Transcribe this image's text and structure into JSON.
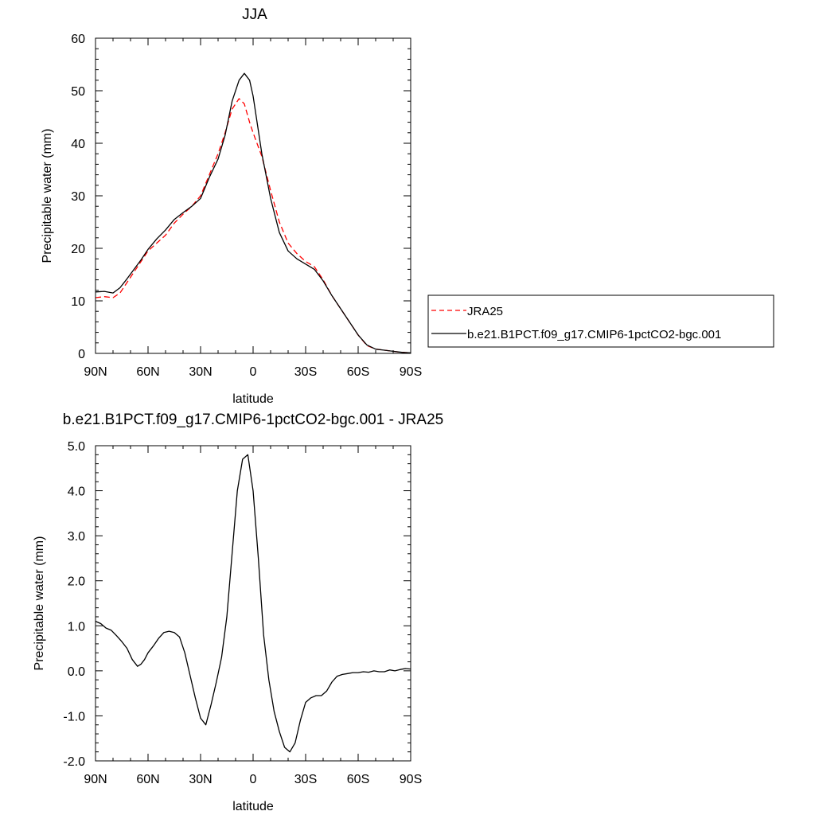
{
  "chart_data": [
    {
      "type": "line",
      "title": "JJA",
      "xlabel": "latitude",
      "ylabel": "Precipitable water (mm)",
      "xlim": [
        90,
        -90
      ],
      "ylim": [
        0,
        60
      ],
      "x_ticks": [
        90,
        60,
        30,
        0,
        -30,
        -60,
        -90
      ],
      "x_tick_labels": [
        "90N",
        "60N",
        "30N",
        "0",
        "30S",
        "60S",
        "90S"
      ],
      "y_ticks": [
        0,
        10,
        20,
        30,
        40,
        50,
        60
      ],
      "y_tick_labels": [
        "0",
        "10",
        "20",
        "30",
        "40",
        "50",
        "60"
      ],
      "grid": false,
      "legend_position": "right",
      "series": [
        {
          "name": "JRA25",
          "color": "#ff0000",
          "dash": "dashed",
          "x": [
            90,
            85,
            80,
            76,
            72,
            68,
            64,
            60,
            55,
            50,
            45,
            40,
            35,
            30,
            25,
            20,
            16,
            12,
            8,
            5,
            2,
            0,
            -5,
            -10,
            -15,
            -20,
            -25,
            -30,
            -35,
            -40,
            -45,
            -50,
            -55,
            -60,
            -65,
            -70,
            -75,
            -80,
            -85,
            -90
          ],
          "values": [
            10.6,
            10.8,
            10.6,
            11.5,
            13.5,
            15.5,
            17.5,
            19.5,
            21.0,
            22.5,
            24.8,
            26.5,
            28.0,
            30.0,
            34.0,
            38.0,
            42.0,
            46.5,
            48.5,
            47.5,
            44.0,
            42.0,
            37.5,
            31.0,
            25.0,
            21.0,
            19.0,
            17.5,
            16.5,
            14.0,
            11.0,
            8.5,
            6.0,
            3.5,
            1.5,
            0.8,
            0.6,
            0.4,
            0.2,
            0.1
          ]
        },
        {
          "name": "b.e21.B1PCT.f09_g17.CMIP6-1pctCO2-bgc.001",
          "color": "#000000",
          "dash": "solid",
          "x": [
            90,
            85,
            80,
            76,
            72,
            68,
            64,
            60,
            55,
            50,
            45,
            40,
            35,
            30,
            25,
            20,
            16,
            12,
            8,
            5,
            2,
            0,
            -5,
            -10,
            -15,
            -20,
            -25,
            -30,
            -35,
            -40,
            -45,
            -50,
            -55,
            -60,
            -65,
            -70,
            -75,
            -80,
            -85,
            -90
          ],
          "values": [
            11.7,
            11.8,
            11.5,
            12.5,
            14.2,
            16.0,
            17.8,
            19.8,
            21.8,
            23.5,
            25.5,
            26.8,
            28.0,
            29.5,
            33.5,
            37.0,
            41.5,
            48.0,
            52.0,
            53.3,
            52.0,
            49.0,
            38.0,
            29.5,
            23.0,
            19.5,
            18.0,
            17.0,
            16.0,
            13.8,
            11.0,
            8.5,
            6.0,
            3.5,
            1.6,
            0.8,
            0.6,
            0.4,
            0.2,
            0.1
          ]
        }
      ]
    },
    {
      "type": "line",
      "title": "b.e21.B1PCT.f09_g17.CMIP6-1pctCO2-bgc.001 - JRA25",
      "xlabel": "latitude",
      "ylabel": "Precipitable water (mm)",
      "xlim": [
        90,
        -90
      ],
      "ylim": [
        -2.0,
        5.0
      ],
      "x_ticks": [
        90,
        60,
        30,
        0,
        -30,
        -60,
        -90
      ],
      "x_tick_labels": [
        "90N",
        "60N",
        "30N",
        "0",
        "30S",
        "60S",
        "90S"
      ],
      "y_ticks": [
        -2.0,
        -1.0,
        0.0,
        1.0,
        2.0,
        3.0,
        4.0,
        5.0
      ],
      "y_tick_labels": [
        "-2.0",
        "-1.0",
        "0.0",
        "1.0",
        "2.0",
        "3.0",
        "4.0",
        "5.0"
      ],
      "grid": false,
      "series": [
        {
          "color": "#000000",
          "dash": "solid",
          "x": [
            90,
            87,
            84,
            81,
            78,
            75,
            72,
            69,
            66,
            64,
            62,
            60,
            57,
            54,
            51,
            48,
            45,
            42,
            39,
            36,
            33,
            30,
            27,
            24,
            21,
            18,
            15,
            12,
            9,
            6,
            3,
            0,
            -3,
            -6,
            -9,
            -12,
            -15,
            -18,
            -21,
            -24,
            -27,
            -30,
            -33,
            -36,
            -39,
            -42,
            -45,
            -48,
            -51,
            -54,
            -57,
            -60,
            -63,
            -66,
            -69,
            -72,
            -75,
            -78,
            -81,
            -84,
            -87,
            -90
          ],
          "values": [
            1.1,
            1.05,
            0.95,
            0.9,
            0.78,
            0.65,
            0.5,
            0.25,
            0.1,
            0.15,
            0.25,
            0.4,
            0.55,
            0.72,
            0.85,
            0.88,
            0.85,
            0.75,
            0.4,
            -0.1,
            -0.6,
            -1.05,
            -1.2,
            -0.75,
            -0.25,
            0.3,
            1.2,
            2.6,
            4.0,
            4.7,
            4.8,
            4.0,
            2.5,
            0.8,
            -0.2,
            -0.9,
            -1.35,
            -1.7,
            -1.8,
            -1.6,
            -1.1,
            -0.7,
            -0.6,
            -0.55,
            -0.55,
            -0.45,
            -0.25,
            -0.12,
            -0.08,
            -0.06,
            -0.04,
            -0.04,
            -0.02,
            -0.03,
            0.0,
            -0.02,
            -0.02,
            0.02,
            0.0,
            0.03,
            0.05,
            0.04
          ]
        }
      ]
    }
  ]
}
